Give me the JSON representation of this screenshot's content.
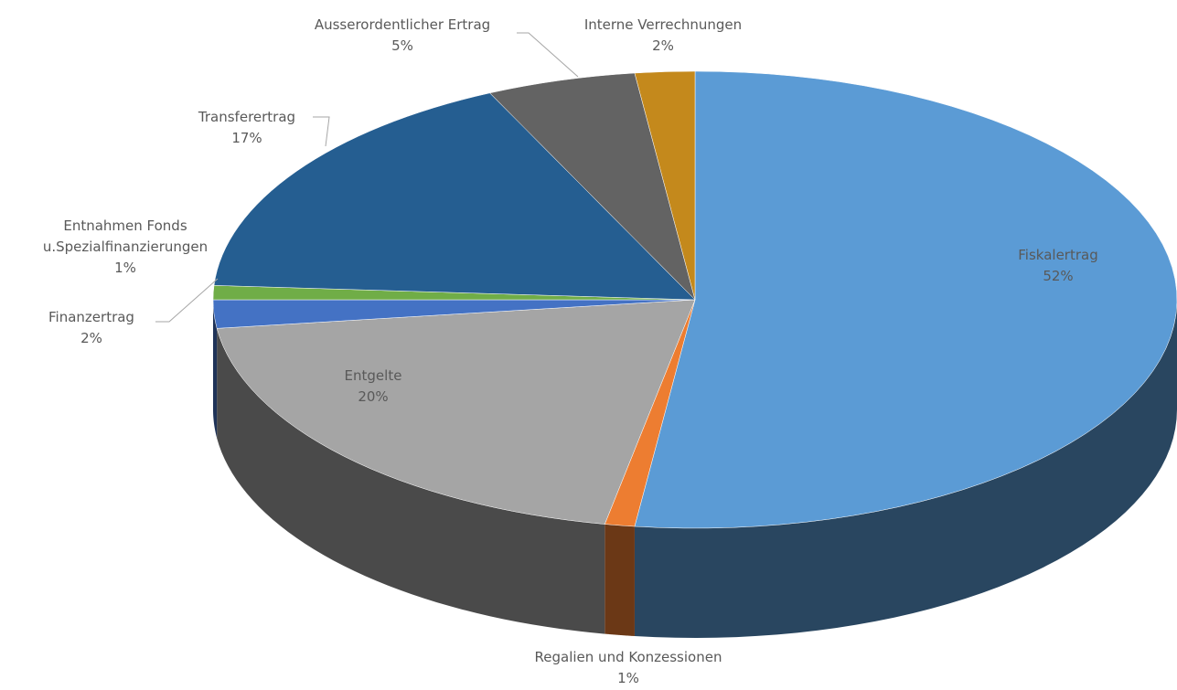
{
  "chart_data": {
    "type": "pie3d",
    "categories": [
      "Fiskalertrag",
      "Regalien und Konzessionen",
      "Entgelte",
      "Finanzertrag",
      "Entnahmen Fonds u.Spezialfinanzierungen",
      "Transferertrag",
      "Ausserordentlicher Ertrag",
      "Interne Verrechnungen"
    ],
    "values": [
      52,
      1,
      20,
      2,
      1,
      17,
      5,
      2
    ],
    "value_labels": [
      "52%",
      "1%",
      "20%",
      "2%",
      "1%",
      "17%",
      "5%",
      "2%"
    ],
    "colors": [
      "#5b9bd5",
      "#ed7d31",
      "#a5a5a5",
      "#4472c4",
      "#70ad47",
      "#255e91",
      "#636363",
      "#c4891c"
    ]
  }
}
